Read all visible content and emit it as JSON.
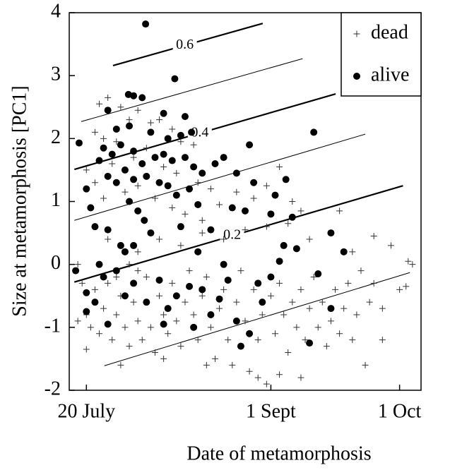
{
  "chart_data": {
    "type": "scatter",
    "xlabel": "Date of metamorphosis",
    "ylabel": "Size at metamorphosis [PC1]",
    "xlim": [
      197,
      279
    ],
    "ylim": [
      -2,
      4
    ],
    "xticks": [
      {
        "value": 201,
        "label": "20 July"
      },
      {
        "value": 244,
        "label": "1 Sept"
      },
      {
        "value": 274,
        "label": "1 Oct"
      }
    ],
    "yticks": [
      -2,
      -1,
      0,
      1,
      2,
      3,
      4
    ],
    "legend": "upper right",
    "lines": [
      {
        "x": [
          207.2,
          242.1
        ],
        "y": [
          3.16,
          3.83
        ],
        "weight": "thick",
        "label": 0.6
      },
      {
        "x": [
          199.8,
          251.4
        ],
        "y": [
          2.27,
          3.27
        ],
        "weight": "thin"
      },
      {
        "x": [
          198.2,
          259.1
        ],
        "y": [
          1.51,
          2.71
        ],
        "weight": "thick",
        "label": 0.4
      },
      {
        "x": [
          198.2,
          266.0
        ],
        "y": [
          0.7,
          2.07
        ],
        "weight": "thin"
      },
      {
        "x": [
          198.2,
          274.8
        ],
        "y": [
          -0.28,
          1.25
        ],
        "weight": "thick",
        "label": 0.2
      },
      {
        "x": [
          205.2,
          276.4
        ],
        "y": [
          -1.61,
          -0.13
        ],
        "weight": "thin"
      }
    ],
    "series": [
      {
        "name": "dead",
        "marker": "plus",
        "color": "#333333",
        "x": [
          204,
          206,
          209,
          211,
          213,
          216,
          218,
          221,
          223,
          226,
          203,
          205,
          208,
          212,
          215,
          219,
          222,
          227,
          230,
          207,
          210,
          213,
          217,
          221,
          224,
          201,
          203,
          205,
          228,
          232,
          236,
          240,
          243,
          246,
          249,
          251,
          199,
          200,
          201,
          202,
          203,
          204,
          205,
          206,
          207,
          208,
          209,
          210,
          211,
          212,
          213,
          214,
          215,
          216,
          217,
          218,
          219,
          220,
          221,
          222,
          223,
          224,
          225,
          226,
          227,
          228,
          229,
          230,
          231,
          232,
          233,
          234,
          235,
          236,
          237,
          238,
          239,
          240,
          241,
          242,
          243,
          244,
          245,
          246,
          247,
          248,
          249,
          250,
          251,
          252,
          253,
          254,
          255,
          256,
          257,
          258,
          259,
          260,
          261,
          262,
          263,
          264,
          265,
          266,
          267,
          268,
          270,
          272,
          274,
          276,
          277,
          275.5,
          270,
          199,
          213,
          218,
          223,
          228,
          233,
          238,
          243,
          248,
          253,
          263,
          268,
          260,
          241,
          246,
          251,
          201,
          209,
          219,
          229,
          213,
          206,
          208,
          211
        ],
        "values": [
          2.55,
          2.65,
          2.5,
          2.3,
          2.45,
          2.25,
          2.3,
          2.15,
          1.95,
          1.9,
          2.1,
          2.0,
          1.95,
          1.7,
          1.85,
          1.55,
          1.45,
          1.3,
          1.2,
          1.6,
          1.15,
          1.25,
          1.05,
          0.9,
          0.8,
          1.5,
          1.3,
          1.05,
          0.7,
          0.95,
          1.15,
          1.05,
          1.25,
          1.55,
          1.0,
          0.85,
          0.0,
          -0.3,
          -0.8,
          -1.0,
          -0.4,
          -1.1,
          -0.7,
          -0.3,
          -1.2,
          -0.8,
          -0.5,
          -1.0,
          -1.3,
          -0.6,
          -0.9,
          -1.2,
          -0.2,
          -1.0,
          -1.4,
          -0.5,
          -0.8,
          -1.1,
          -0.3,
          -0.9,
          -1.3,
          -0.6,
          -0.1,
          -0.8,
          -1.2,
          -0.5,
          -0.2,
          -1.0,
          -1.5,
          -0.7,
          -0.4,
          -1.2,
          -1.6,
          -0.6,
          -0.1,
          -0.9,
          -1.7,
          -0.4,
          -1.2,
          -0.8,
          -1.9,
          -0.5,
          -1.1,
          -0.3,
          -0.8,
          -1.4,
          -0.6,
          -1.0,
          -0.4,
          -1.2,
          -0.7,
          -0.2,
          -1.0,
          -0.6,
          -1.3,
          -0.9,
          -0.4,
          -1.1,
          -0.7,
          -0.3,
          -1.2,
          -0.8,
          -0.1,
          -1.6,
          -0.6,
          -0.3,
          -0.7,
          0.3,
          -0.4,
          0.05,
          0.0,
          -0.35,
          -1.2,
          -0.9,
          0.2,
          0.4,
          0.3,
          0.5,
          0.4,
          0.55,
          0.6,
          0.65,
          0.4,
          0.2,
          0.45,
          0.85,
          -1.8,
          -1.75,
          -1.8,
          -1.35,
          -1.6,
          -1.5,
          -1.6,
          -0.1,
          0.4,
          -0.2,
          0.0
        ]
      },
      {
        "name": "alive",
        "marker": "circle",
        "color": "#000000",
        "x": [
          214.8,
          221.6,
          199.3,
          210.8,
          212,
          214,
          206,
          219,
          224,
          208,
          211,
          216,
          220,
          223,
          225.5,
          205,
          207,
          209,
          212,
          214,
          217,
          219,
          221,
          224,
          226,
          228,
          231,
          233,
          236,
          240,
          245,
          247.5,
          254,
          239,
          204,
          206,
          208,
          210,
          212,
          215,
          218,
          220,
          222,
          225,
          227,
          211,
          213,
          214.5,
          216,
          212,
          210,
          201,
          202,
          203,
          206,
          223,
          230,
          235,
          238,
          244,
          249,
          247,
          250,
          258,
          261,
          255,
          258,
          253,
          198.5,
          201,
          203,
          205,
          208,
          210,
          212,
          215,
          218,
          220,
          222,
          225,
          228,
          230,
          232,
          234,
          236,
          239,
          241,
          244,
          237,
          226,
          219,
          206,
          204,
          201,
          246,
          209,
          227,
          233,
          242
        ],
        "values": [
          3.82,
          2.95,
          1.93,
          2.7,
          2.68,
          2.65,
          2.45,
          2.4,
          2.35,
          2.15,
          2.2,
          2.1,
          2.0,
          2.05,
          2.1,
          1.85,
          1.75,
          1.9,
          1.8,
          1.6,
          1.7,
          1.75,
          1.65,
          1.7,
          1.55,
          1.45,
          1.6,
          1.7,
          1.45,
          1.3,
          1.1,
          1.35,
          2.1,
          1.9,
          1.65,
          1.4,
          1.3,
          1.5,
          1.35,
          1.4,
          1.3,
          1.25,
          1.1,
          1.2,
          0.95,
          1.0,
          0.85,
          0.7,
          0.5,
          0.3,
          0.2,
          1.2,
          0.9,
          0.6,
          0.55,
          0.6,
          0.55,
          0.9,
          0.85,
          0.8,
          0.75,
          0.3,
          0.25,
          0.5,
          0.2,
          -0.15,
          -0.7,
          -1.25,
          -0.1,
          -0.45,
          -0.6,
          -0.2,
          -0.1,
          -0.5,
          -0.3,
          -0.6,
          -0.25,
          -0.7,
          -0.5,
          -0.35,
          -0.4,
          -0.8,
          -0.55,
          -0.25,
          -0.9,
          -1.1,
          -0.3,
          -0.2,
          -1.3,
          -1.0,
          -0.95,
          -0.95,
          0.0,
          -0.75,
          0.05,
          0.3,
          0.2,
          0.0,
          -0.6
        ]
      }
    ]
  }
}
